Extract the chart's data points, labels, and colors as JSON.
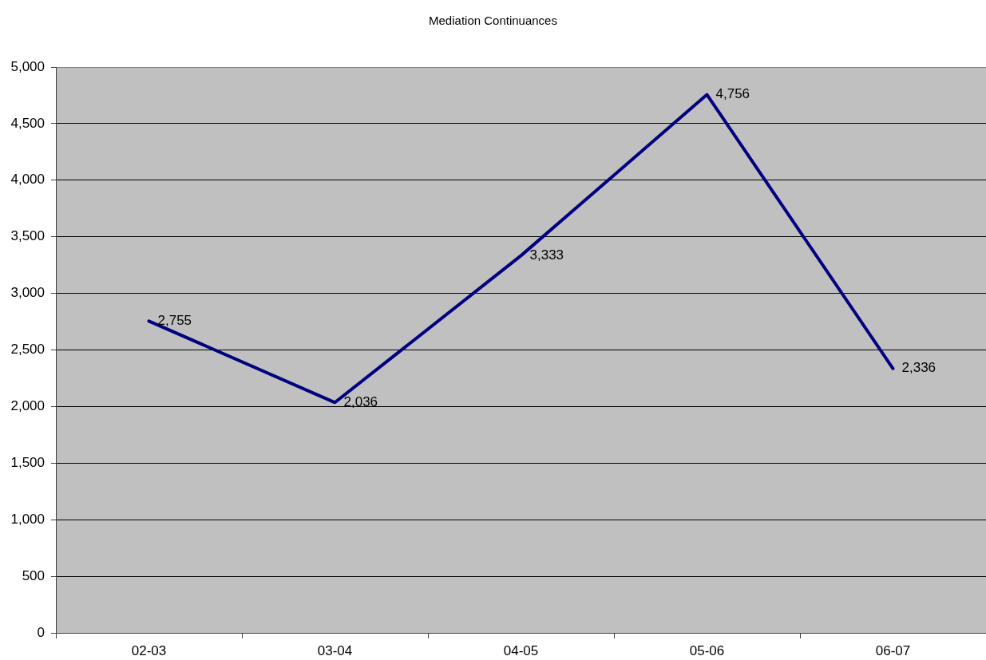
{
  "chart_data": {
    "type": "line",
    "title": "Mediation Continuances",
    "categories": [
      "02-03",
      "03-04",
      "04-05",
      "05-06",
      "06-07"
    ],
    "series": [
      {
        "color": "#000080",
        "values": [
          2755,
          2036,
          3333,
          4756,
          2336
        ],
        "value_labels": [
          "2,755",
          "2,036",
          "3,333",
          "4,756",
          "2,336"
        ]
      }
    ],
    "ylim": [
      0,
      5000
    ],
    "yticks": [
      0,
      500,
      {
        "value": 1000,
        "label": "1,000"
      },
      {
        "value": 1500,
        "label": "1,500"
      },
      {
        "value": 2000,
        "label": "2,000"
      },
      {
        "value": 2500,
        "label": "2,500"
      },
      {
        "value": 3000,
        "label": "3,000"
      },
      {
        "value": 3500,
        "label": "3,500"
      },
      {
        "value": 4000,
        "label": "4,000"
      },
      {
        "value": 4500,
        "label": "4,500"
      },
      {
        "value": 5000,
        "label": "5,000"
      }
    ],
    "grid": "y",
    "marker": "none",
    "line_style": "solid"
  }
}
